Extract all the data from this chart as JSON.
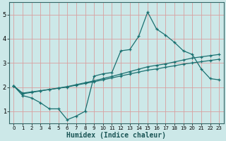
{
  "xlabel": "Humidex (Indice chaleur)",
  "bg_color": "#cce8e8",
  "line_color": "#1a7070",
  "grid_color": "#d9a0a0",
  "xlim": [
    -0.5,
    23.5
  ],
  "ylim": [
    0.5,
    5.5
  ],
  "xticks": [
    0,
    1,
    2,
    3,
    4,
    5,
    6,
    7,
    8,
    9,
    10,
    11,
    12,
    13,
    14,
    15,
    16,
    17,
    18,
    19,
    20,
    21,
    22,
    23
  ],
  "yticks": [
    1,
    2,
    3,
    4,
    5
  ],
  "line1_x": [
    0,
    1,
    2,
    3,
    4,
    5,
    6,
    7,
    8,
    9,
    10,
    11,
    12,
    13,
    14,
    15,
    16,
    17,
    18,
    19,
    20,
    21,
    22,
    23
  ],
  "line1_y": [
    2.05,
    1.65,
    1.55,
    1.35,
    1.1,
    1.1,
    0.65,
    0.8,
    1.0,
    2.45,
    2.55,
    2.6,
    3.5,
    3.55,
    4.1,
    5.1,
    4.4,
    4.15,
    3.85,
    3.5,
    3.35,
    2.75,
    2.35,
    2.3
  ],
  "line2_x": [
    0,
    1,
    2,
    3,
    4,
    5,
    6,
    7,
    8,
    9,
    10,
    11,
    12,
    13,
    14,
    15,
    16,
    17,
    18,
    19,
    20,
    21,
    22,
    23
  ],
  "line2_y": [
    2.05,
    1.75,
    1.8,
    1.85,
    1.9,
    1.95,
    2.0,
    2.08,
    2.15,
    2.22,
    2.3,
    2.38,
    2.46,
    2.54,
    2.62,
    2.7,
    2.75,
    2.82,
    2.88,
    2.95,
    3.0,
    3.05,
    3.1,
    3.15
  ],
  "line3_x": [
    0,
    1,
    2,
    3,
    4,
    5,
    6,
    7,
    8,
    9,
    10,
    11,
    12,
    13,
    14,
    15,
    16,
    17,
    18,
    19,
    20,
    21,
    22,
    23
  ],
  "line3_y": [
    2.05,
    1.72,
    1.78,
    1.84,
    1.9,
    1.96,
    2.02,
    2.1,
    2.18,
    2.26,
    2.35,
    2.44,
    2.54,
    2.64,
    2.74,
    2.84,
    2.9,
    2.96,
    3.04,
    3.12,
    3.2,
    3.25,
    3.3,
    3.35
  ]
}
